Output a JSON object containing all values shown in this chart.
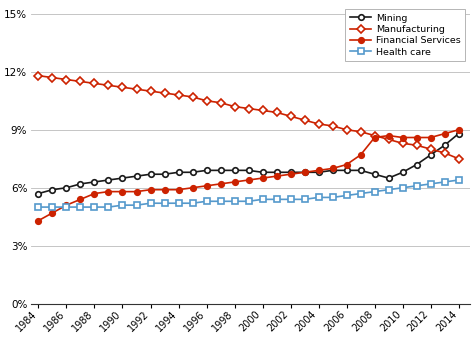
{
  "years": [
    1984,
    1985,
    1986,
    1987,
    1988,
    1989,
    1990,
    1991,
    1992,
    1993,
    1994,
    1995,
    1996,
    1997,
    1998,
    1999,
    2000,
    2001,
    2002,
    2003,
    2004,
    2005,
    2006,
    2007,
    2008,
    2009,
    2010,
    2011,
    2012,
    2013,
    2014
  ],
  "mining": [
    0.057,
    0.059,
    0.06,
    0.062,
    0.063,
    0.064,
    0.065,
    0.066,
    0.067,
    0.067,
    0.068,
    0.068,
    0.069,
    0.069,
    0.069,
    0.069,
    0.068,
    0.068,
    0.068,
    0.068,
    0.068,
    0.069,
    0.069,
    0.069,
    0.067,
    0.065,
    0.068,
    0.072,
    0.077,
    0.082,
    0.088
  ],
  "manufacturing": [
    0.118,
    0.117,
    0.116,
    0.115,
    0.114,
    0.113,
    0.112,
    0.111,
    0.11,
    0.109,
    0.108,
    0.107,
    0.105,
    0.104,
    0.102,
    0.101,
    0.1,
    0.099,
    0.097,
    0.095,
    0.093,
    0.092,
    0.09,
    0.089,
    0.087,
    0.085,
    0.083,
    0.082,
    0.08,
    0.078,
    0.075
  ],
  "financial_services": [
    0.043,
    0.047,
    0.051,
    0.054,
    0.057,
    0.058,
    0.058,
    0.058,
    0.059,
    0.059,
    0.059,
    0.06,
    0.061,
    0.062,
    0.063,
    0.064,
    0.065,
    0.066,
    0.067,
    0.068,
    0.069,
    0.07,
    0.072,
    0.077,
    0.086,
    0.087,
    0.086,
    0.086,
    0.086,
    0.088,
    0.09
  ],
  "health_care": [
    0.05,
    0.05,
    0.05,
    0.05,
    0.05,
    0.05,
    0.051,
    0.051,
    0.052,
    0.052,
    0.052,
    0.052,
    0.053,
    0.053,
    0.053,
    0.053,
    0.054,
    0.054,
    0.054,
    0.054,
    0.055,
    0.055,
    0.056,
    0.057,
    0.058,
    0.059,
    0.06,
    0.061,
    0.062,
    0.063,
    0.064
  ],
  "mining_color": "#1a1a1a",
  "manufacturing_color": "#cc2200",
  "financial_services_color": "#cc2200",
  "health_care_color": "#5599cc",
  "ylim": [
    0.0,
    0.155
  ],
  "yticks": [
    0.0,
    0.03,
    0.06,
    0.09,
    0.12,
    0.15
  ],
  "ytick_labels": [
    "0%",
    "3%",
    "6%",
    "9%",
    "12%",
    "15%"
  ],
  "xticks": [
    1984,
    1986,
    1988,
    1990,
    1992,
    1994,
    1996,
    1998,
    2000,
    2002,
    2004,
    2006,
    2008,
    2010,
    2012,
    2014
  ],
  "legend_labels": [
    "Mining",
    "Manufacturing",
    "Financial Services",
    "Health care"
  ],
  "marker_size": 4,
  "line_width": 1.2
}
